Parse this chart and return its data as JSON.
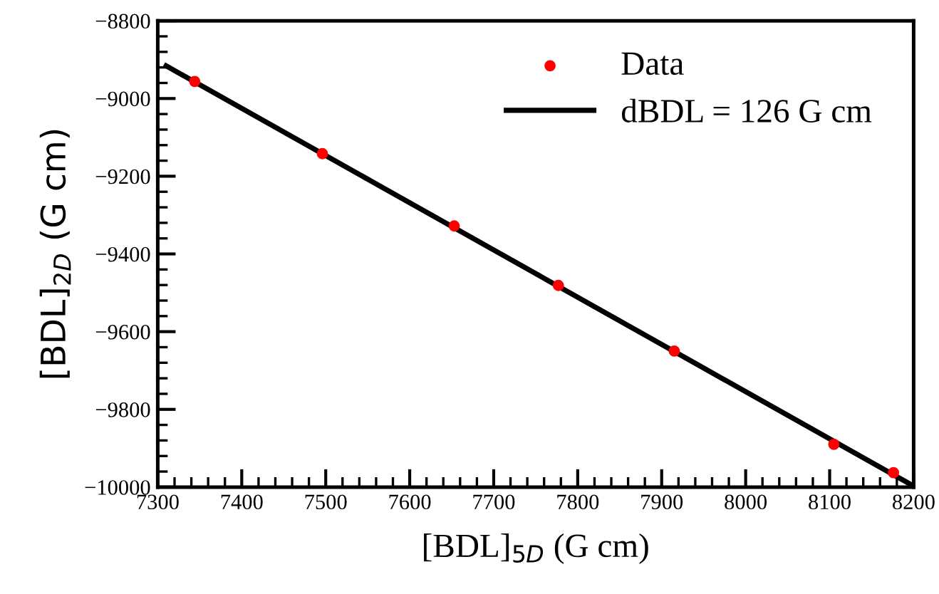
{
  "chart_data": {
    "type": "scatter",
    "xlabel": "[BDL]$_{5D}$ (G cm)",
    "ylabel": "[BDL]$_{2D}$ (G cm)",
    "xlim": [
      7300,
      8200
    ],
    "ylim": [
      -10000,
      -8800
    ],
    "xticks": [
      7300,
      7400,
      7500,
      7600,
      7700,
      7800,
      7900,
      8000,
      8100,
      8200
    ],
    "yticks": [
      {
        "value": -10000,
        "label": "−10000"
      },
      {
        "value": -9800,
        "label": "−9800"
      },
      {
        "value": -9600,
        "label": "−9600"
      },
      {
        "value": -9400,
        "label": "−9400"
      },
      {
        "value": -9200,
        "label": "−9200"
      },
      {
        "value": -9000,
        "label": "−9000"
      },
      {
        "value": -8800,
        "label": "−8800"
      }
    ],
    "grid": false,
    "legend": "top right",
    "series": [
      {
        "name": "Data",
        "color": "#ff0000",
        "marker": "circle",
        "x": [
          7344,
          7496,
          7653,
          7777,
          7915,
          8105,
          8176
        ],
        "values": [
          -8956,
          -9142,
          -9328,
          -9481,
          -9650,
          -9890,
          -9963
        ]
      },
      {
        "name": "dBDL = 126 G cm",
        "type": "line",
        "color": "#000000",
        "line_style": "solid",
        "marker": "none",
        "x": [
          7310,
          8198
        ],
        "values": [
          -8916,
          -9995
        ]
      }
    ]
  }
}
